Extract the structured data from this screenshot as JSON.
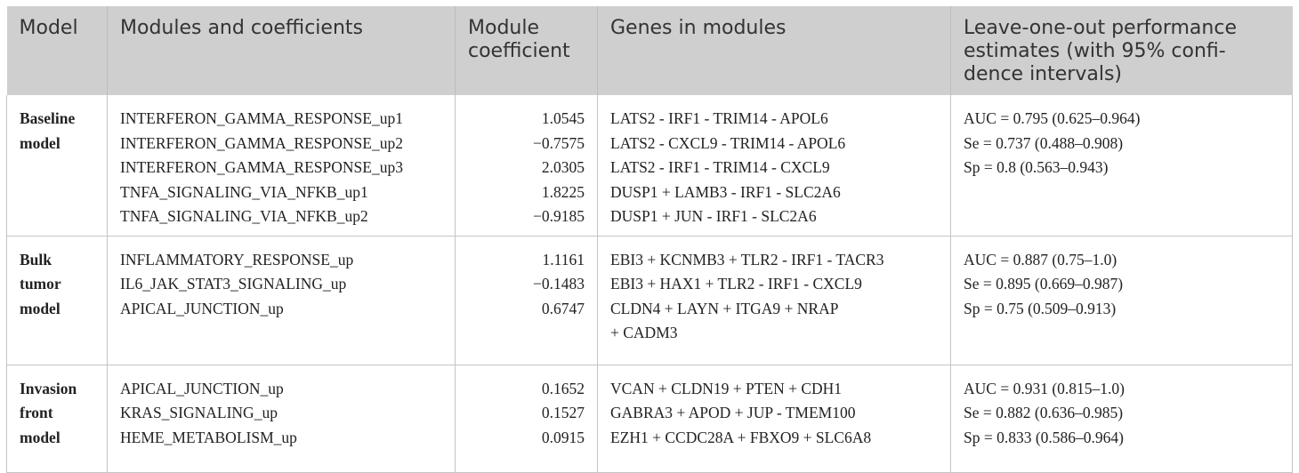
{
  "headers": {
    "model": "Model",
    "modules": "Modules and coefficients",
    "coefficient": [
      "Module",
      "coefficient"
    ],
    "genes": "Genes in modules",
    "performance": [
      "Leave-one-out performance",
      "estimates (with 95% confi-",
      "dence intervals)"
    ]
  },
  "rows": [
    {
      "model": [
        "Baseline",
        "model"
      ],
      "modules": [
        "INTERFERON_GAMMA_RESPONSE_up1",
        "INTERFERON_GAMMA_RESPONSE_up2",
        "INTERFERON_GAMMA_RESPONSE_up3",
        "TNFA_SIGNALING_VIA_NFKB_up1",
        "TNFA_SIGNALING_VIA_NFKB_up2"
      ],
      "coefficients": [
        "1.0545",
        "−0.7575",
        "2.0305",
        "1.8225",
        "−0.9185"
      ],
      "genes": [
        "LATS2 - IRF1 - TRIM14 - APOL6",
        "LATS2 - CXCL9 - TRIM14 - APOL6",
        "LATS2 - IRF1 - TRIM14 - CXCL9",
        "DUSP1 + LAMB3 - IRF1 - SLC2A6",
        "DUSP1 + JUN - IRF1 - SLC2A6"
      ],
      "performance": [
        "AUC = 0.795 (0.625–0.964)",
        "Se = 0.737 (0.488–0.908)",
        "Sp = 0.8 (0.563–0.943)"
      ]
    },
    {
      "model": [
        "Bulk",
        "tumor",
        "model"
      ],
      "modules": [
        "INFLAMMATORY_RESPONSE_up",
        "IL6_JAK_STAT3_SIGNALING_up",
        "APICAL_JUNCTION_up"
      ],
      "coefficients": [
        "1.1161",
        "−0.1483",
        "0.6747"
      ],
      "genes": [
        "EBI3 + KCNMB3 + TLR2 - IRF1 - TACR3",
        "EBI3 + HAX1 + TLR2 - IRF1 - CXCL9",
        "CLDN4 + LAYN + ITGA9 + NRAP",
        "+ CADM3"
      ],
      "performance": [
        "AUC = 0.887 (0.75–1.0)",
        "Se = 0.895 (0.669–0.987)",
        "Sp = 0.75 (0.509–0.913)"
      ]
    },
    {
      "model": [
        "Invasion",
        "front",
        "model"
      ],
      "modules": [
        "APICAL_JUNCTION_up",
        "KRAS_SIGNALING_up",
        "HEME_METABOLISM_up"
      ],
      "coefficients": [
        "0.1652",
        "0.1527",
        "0.0915"
      ],
      "genes": [
        "VCAN + CLDN19 + PTEN + CDH1",
        "GABRA3 + APOD + JUP - TMEM100",
        "EZH1 + CCDC28A + FBXO9 + SLC6A8"
      ],
      "performance": [
        "AUC = 0.931 (0.815–1.0)",
        "Se = 0.882 (0.636–0.985)",
        "Sp = 0.833 (0.586–0.964)"
      ]
    }
  ]
}
